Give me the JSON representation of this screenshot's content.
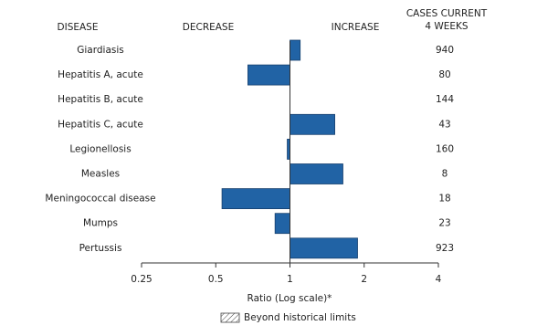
{
  "chart_data": {
    "type": "bar",
    "orientation": "horizontal",
    "headers": {
      "disease": "DISEASE",
      "decrease": "DECREASE",
      "increase": "INCREASE",
      "cases": [
        "CASES CURRENT",
        "4 WEEKS"
      ]
    },
    "categories": [
      "Giardiasis",
      "Hepatitis A, acute",
      "Hepatitis B, acute",
      "Hepatitis C, acute",
      "Legionellosis",
      "Measles",
      "Meningococcal disease",
      "Mumps",
      "Pertussis"
    ],
    "values": [
      1.1,
      0.675,
      1.0,
      1.52,
      0.975,
      1.64,
      0.53,
      0.87,
      1.88
    ],
    "cases": [
      940,
      80,
      144,
      43,
      160,
      8,
      18,
      23,
      923
    ],
    "color": "#2163a5",
    "xlim": [
      0.25,
      4
    ],
    "xticks": [
      0.25,
      0.5,
      1,
      2,
      4
    ],
    "log_scale": true,
    "xlabel": "Ratio (Log scale)*",
    "legend": "Beyond historical limits"
  }
}
